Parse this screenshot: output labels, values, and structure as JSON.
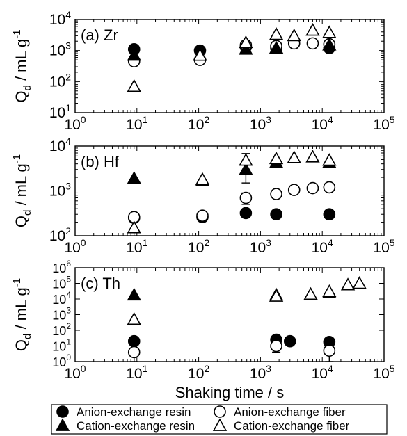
{
  "figure": {
    "xlabel": "Shaking time / s",
    "ylabel_main": "Q",
    "ylabel_sub": "d",
    "ylabel_unit": " / mL g",
    "ylabel_exp": "-1"
  },
  "legend": [
    {
      "label": "Anion-exchange resin",
      "marker": "circle",
      "filled": true
    },
    {
      "label": "Anion-exchange fiber",
      "marker": "circle",
      "filled": false
    },
    {
      "label": "Cation-exchange resin",
      "marker": "triangle",
      "filled": true
    },
    {
      "label": "Cation-exchange fiber",
      "marker": "triangle",
      "filled": false
    }
  ],
  "chart_data": [
    {
      "type": "scatter",
      "panel_label": "(a) Zr",
      "xscale": "log",
      "yscale": "log",
      "xlim": [
        1,
        100000
      ],
      "ylim": [
        10,
        10000
      ],
      "xticks": [
        {
          "v": 1,
          "e": "0"
        },
        {
          "v": 10,
          "e": "1"
        },
        {
          "v": 100,
          "e": "2"
        },
        {
          "v": 1000,
          "e": "3"
        },
        {
          "v": 10000,
          "e": "4"
        },
        {
          "v": 100000,
          "e": "5"
        }
      ],
      "yticks": [
        {
          "v": 10,
          "e": "1"
        },
        {
          "v": 100,
          "e": "2"
        },
        {
          "v": 1000,
          "e": "3"
        },
        {
          "v": 10000,
          "e": "4"
        }
      ],
      "series": [
        {
          "name": "Anion-exchange resin",
          "marker": "circle",
          "filled": true,
          "points": [
            {
              "x": 9,
              "y": 1100
            },
            {
              "x": 105,
              "y": 1000
            },
            {
              "x": 580,
              "y": 1300
            },
            {
              "x": 1800,
              "y": 1200
            },
            {
              "x": 13000,
              "y": 1200
            }
          ]
        },
        {
          "name": "Anion-exchange fiber",
          "marker": "circle",
          "filled": false,
          "points": [
            {
              "x": 9,
              "y": 450
            },
            {
              "x": 105,
              "y": 500
            },
            {
              "x": 580,
              "y": 1500
            },
            {
              "x": 1800,
              "y": 1400
            },
            {
              "x": 3500,
              "y": 1700
            },
            {
              "x": 7000,
              "y": 1700
            },
            {
              "x": 13000,
              "y": 1600
            }
          ]
        },
        {
          "name": "Cation-exchange resin",
          "marker": "triangle",
          "filled": true,
          "points": [
            {
              "x": 9,
              "y": 700
            },
            {
              "x": 105,
              "y": 700
            },
            {
              "x": 580,
              "y": 1100
            },
            {
              "x": 1800,
              "y": 1200
            },
            {
              "x": 13000,
              "y": 1500
            }
          ]
        },
        {
          "name": "Cation-exchange fiber",
          "marker": "triangle",
          "filled": false,
          "points": [
            {
              "x": 9,
              "y": 70
            },
            {
              "x": 105,
              "y": 700
            },
            {
              "x": 580,
              "y": 1800
            },
            {
              "x": 1800,
              "y": 3300
            },
            {
              "x": 3500,
              "y": 3000
            },
            {
              "x": 7000,
              "y": 4500
            },
            {
              "x": 13000,
              "y": 3800
            }
          ]
        }
      ]
    },
    {
      "type": "scatter",
      "panel_label": "(b) Hf",
      "xscale": "log",
      "yscale": "log",
      "xlim": [
        1,
        100000
      ],
      "ylim": [
        100,
        10000
      ],
      "xticks": [
        {
          "v": 1,
          "e": "0"
        },
        {
          "v": 10,
          "e": "1"
        },
        {
          "v": 100,
          "e": "2"
        },
        {
          "v": 1000,
          "e": "3"
        },
        {
          "v": 10000,
          "e": "4"
        },
        {
          "v": 100000,
          "e": "5"
        }
      ],
      "yticks": [
        {
          "v": 100,
          "e": "2"
        },
        {
          "v": 1000,
          "e": "3"
        },
        {
          "v": 10000,
          "e": "4"
        }
      ],
      "series": [
        {
          "name": "Anion-exchange resin",
          "marker": "circle",
          "filled": true,
          "points": [
            {
              "x": 9,
              "y": 250
            },
            {
              "x": 115,
              "y": 260
            },
            {
              "x": 580,
              "y": 320,
              "err": 60
            },
            {
              "x": 1800,
              "y": 300
            },
            {
              "x": 13000,
              "y": 300
            }
          ]
        },
        {
          "name": "Anion-exchange fiber",
          "marker": "circle",
          "filled": false,
          "points": [
            {
              "x": 9,
              "y": 260,
              "err": 60
            },
            {
              "x": 115,
              "y": 280
            },
            {
              "x": 580,
              "y": 700,
              "err": 200
            },
            {
              "x": 1800,
              "y": 850
            },
            {
              "x": 3500,
              "y": 1050
            },
            {
              "x": 7000,
              "y": 1150
            },
            {
              "x": 13000,
              "y": 1200
            }
          ]
        },
        {
          "name": "Cation-exchange resin",
          "marker": "triangle",
          "filled": true,
          "points": [
            {
              "x": 9,
              "y": 1900
            },
            {
              "x": 115,
              "y": 1700
            },
            {
              "x": 580,
              "y": 3000,
              "err": 1500
            },
            {
              "x": 1800,
              "y": 4300
            },
            {
              "x": 13000,
              "y": 4300
            }
          ]
        },
        {
          "name": "Cation-exchange fiber",
          "marker": "triangle",
          "filled": false,
          "points": [
            {
              "x": 9,
              "y": 150
            },
            {
              "x": 115,
              "y": 1800
            },
            {
              "x": 580,
              "y": 4800,
              "err": 2000
            },
            {
              "x": 1800,
              "y": 5200
            },
            {
              "x": 3500,
              "y": 5500
            },
            {
              "x": 7000,
              "y": 5700
            },
            {
              "x": 13000,
              "y": 4800
            }
          ]
        }
      ]
    },
    {
      "type": "scatter",
      "panel_label": "(c) Th",
      "xscale": "log",
      "yscale": "log",
      "xlim": [
        1,
        100000
      ],
      "ylim": [
        1,
        1000000
      ],
      "xticks": [
        {
          "v": 1,
          "e": "0"
        },
        {
          "v": 10,
          "e": "1"
        },
        {
          "v": 100,
          "e": "2"
        },
        {
          "v": 1000,
          "e": "3"
        },
        {
          "v": 10000,
          "e": "4"
        },
        {
          "v": 100000,
          "e": "5"
        }
      ],
      "yticks": [
        {
          "v": 1,
          "e": "0"
        },
        {
          "v": 10,
          "e": "1"
        },
        {
          "v": 100,
          "e": "2"
        },
        {
          "v": 1000,
          "e": "3"
        },
        {
          "v": 10000,
          "e": "4"
        },
        {
          "v": 100000,
          "e": "5"
        },
        {
          "v": 1000000,
          "e": "6"
        }
      ],
      "series": [
        {
          "name": "Anion-exchange resin",
          "marker": "circle",
          "filled": true,
          "points": [
            {
              "x": 9,
              "y": 20
            },
            {
              "x": 1800,
              "y": 25
            },
            {
              "x": 3000,
              "y": 20
            },
            {
              "x": 13000,
              "y": 18
            }
          ]
        },
        {
          "name": "Anion-exchange fiber",
          "marker": "circle",
          "filled": false,
          "points": [
            {
              "x": 9,
              "y": 4,
              "err": 3
            },
            {
              "x": 1800,
              "y": 10,
              "err": 6
            },
            {
              "x": 13000,
              "y": 5,
              "err": 4
            }
          ]
        },
        {
          "name": "Cation-exchange resin",
          "marker": "triangle",
          "filled": true,
          "points": [
            {
              "x": 9,
              "y": 18000
            },
            {
              "x": 1800,
              "y": 18000
            },
            {
              "x": 13000,
              "y": 25000
            }
          ]
        },
        {
          "name": "Cation-exchange fiber",
          "marker": "triangle",
          "filled": false,
          "points": [
            {
              "x": 9,
              "y": 500
            },
            {
              "x": 1800,
              "y": 15000
            },
            {
              "x": 6500,
              "y": 20000
            },
            {
              "x": 13000,
              "y": 30000
            },
            {
              "x": 26000,
              "y": 80000
            },
            {
              "x": 40000,
              "y": 100000
            }
          ]
        }
      ]
    }
  ]
}
